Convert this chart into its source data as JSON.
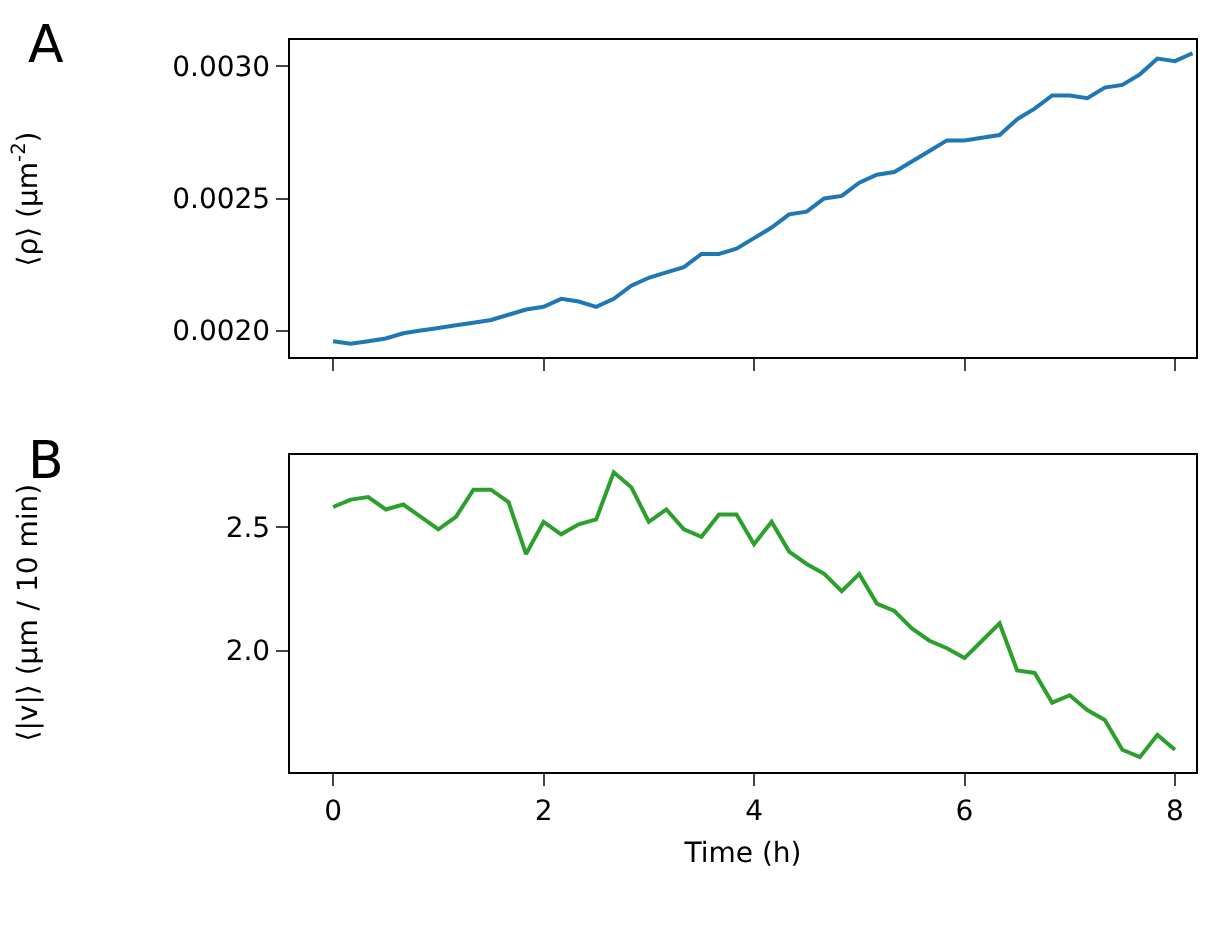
{
  "chart_data": [
    {
      "type": "line",
      "title": "A",
      "ylabel": "⟨ρ⟩ (μm$^{-2}$)",
      "xlim": [
        -0.41,
        8.2
      ],
      "xticks": [
        0,
        2,
        4,
        6,
        8
      ],
      "ylim": [
        0.0019,
        0.0031
      ],
      "yticks": [
        {
          "value": 0.002,
          "label": "0.0020"
        },
        {
          "value": 0.0025,
          "label": "0.0025"
        },
        {
          "value": 0.003,
          "label": "0.0030"
        }
      ],
      "tick_labels": "y",
      "x": [
        0,
        0.1667,
        0.3333,
        0.5,
        0.6667,
        0.8333,
        1,
        1.1667,
        1.3333,
        1.5,
        1.6667,
        1.8333,
        2,
        2.1667,
        2.3333,
        2.5,
        2.6667,
        2.8333,
        3,
        3.1667,
        3.3333,
        3.5,
        3.6667,
        3.8333,
        4,
        4.1667,
        4.3333,
        4.5,
        4.6667,
        4.8333,
        5,
        5.1667,
        5.3333,
        5.5,
        5.6667,
        5.8333,
        6,
        6.1667,
        6.3333,
        6.5,
        6.6667,
        6.8333,
        7,
        7.1667,
        7.3333,
        7.5,
        7.6667,
        7.8333,
        8,
        8.1667
      ],
      "series": [
        {
          "color": "#1f77b4",
          "values": [
            0.00196,
            0.00195,
            0.00196,
            0.00197,
            0.00199,
            0.002,
            0.00201,
            0.00202,
            0.00203,
            0.00204,
            0.00206,
            0.00208,
            0.00209,
            0.00212,
            0.00211,
            0.00209,
            0.00212,
            0.00217,
            0.0022,
            0.00222,
            0.00224,
            0.00229,
            0.00229,
            0.00231,
            0.00235,
            0.00239,
            0.00244,
            0.00245,
            0.0025,
            0.00251,
            0.00256,
            0.00259,
            0.0026,
            0.00264,
            0.00268,
            0.00272,
            0.00272,
            0.00273,
            0.00274,
            0.0028,
            0.00284,
            0.00289,
            0.00289,
            0.00288,
            0.00292,
            0.00293,
            0.00297,
            0.00303,
            0.00302,
            0.00305
          ]
        }
      ]
    },
    {
      "type": "line",
      "title": "B",
      "ylabel": "⟨|v|⟩ (μm / 10 min)",
      "xlabel": "Time (h)",
      "xlim": [
        -0.41,
        8.2
      ],
      "xticks": [
        0,
        2,
        4,
        6,
        8
      ],
      "ylim": [
        1.51,
        2.79
      ],
      "yticks": [
        {
          "value": 2.0,
          "label": "2.0"
        },
        {
          "value": 2.5,
          "label": "2.5"
        }
      ],
      "x": [
        0,
        0.1667,
        0.3333,
        0.5,
        0.6667,
        0.8333,
        1,
        1.1667,
        1.3333,
        1.5,
        1.6667,
        1.8333,
        2,
        2.1667,
        2.3333,
        2.5,
        2.6667,
        2.8333,
        3,
        3.1667,
        3.3333,
        3.5,
        3.6667,
        3.8333,
        4,
        4.1667,
        4.3333,
        4.5,
        4.6667,
        4.8333,
        5,
        5.1667,
        5.3333,
        5.5,
        5.6667,
        5.8333,
        6,
        6.1667,
        6.3333,
        6.5,
        6.6667,
        6.8333,
        7,
        7.1667,
        7.3333,
        7.5,
        7.6667,
        7.8333,
        8
      ],
      "series": [
        {
          "color": "#2ca02c",
          "values": [
            2.58,
            2.61,
            2.62,
            2.57,
            2.59,
            2.54,
            2.49,
            2.54,
            2.65,
            2.65,
            2.6,
            2.39,
            2.52,
            2.47,
            2.51,
            2.53,
            2.72,
            2.66,
            2.52,
            2.57,
            2.49,
            2.46,
            2.55,
            2.55,
            2.43,
            2.52,
            2.4,
            2.35,
            2.31,
            2.24,
            2.31,
            2.19,
            2.16,
            2.09,
            2.04,
            2.01,
            1.97,
            2.04,
            2.11,
            1.92,
            1.91,
            1.79,
            1.82,
            1.76,
            1.72,
            1.6,
            1.57,
            1.66,
            1.6
          ]
        }
      ]
    }
  ]
}
